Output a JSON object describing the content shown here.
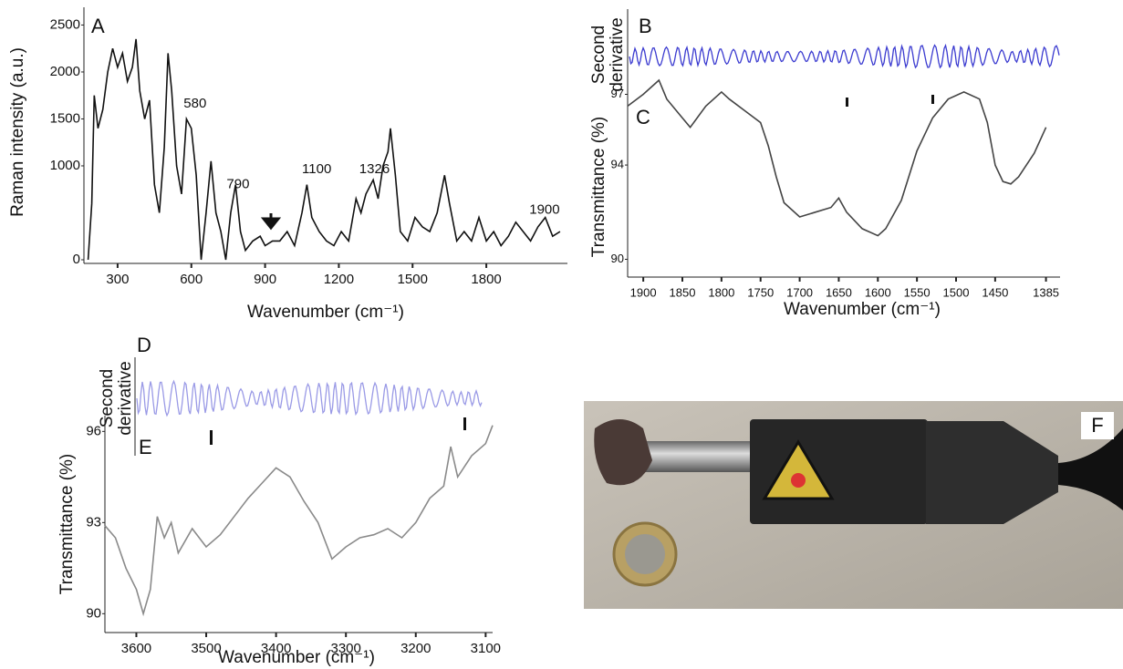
{
  "chart_data": [
    {
      "type": "line",
      "letter": "A",
      "ylabel": "Raman intensity (a.u.)",
      "xlabel": "Wavenumber (cm⁻¹)",
      "color": "#111111",
      "xlim": [
        163,
        2130
      ],
      "xticks": [
        300,
        600,
        900,
        1200,
        1500,
        1800
      ],
      "ylim": [
        0,
        2650
      ],
      "yticks": [
        0,
        1000,
        1500,
        2000,
        2500
      ],
      "x": [
        180,
        195,
        205,
        220,
        240,
        260,
        280,
        300,
        320,
        340,
        360,
        375,
        390,
        410,
        430,
        450,
        470,
        490,
        505,
        520,
        540,
        560,
        580,
        600,
        620,
        640,
        660,
        680,
        700,
        720,
        740,
        760,
        780,
        800,
        820,
        850,
        880,
        900,
        930,
        960,
        990,
        1020,
        1050,
        1070,
        1090,
        1120,
        1150,
        1180,
        1210,
        1240,
        1270,
        1290,
        1310,
        1340,
        1360,
        1380,
        1400,
        1410,
        1430,
        1450,
        1480,
        1510,
        1540,
        1570,
        1600,
        1630,
        1650,
        1680,
        1710,
        1740,
        1770,
        1800,
        1830,
        1860,
        1890,
        1920,
        1950,
        1980,
        2010,
        2040,
        2070,
        2100
      ],
      "values": [
        0,
        600,
        1750,
        1400,
        1600,
        2000,
        2250,
        2050,
        2200,
        1900,
        2050,
        2350,
        1800,
        1500,
        1700,
        800,
        500,
        1200,
        2200,
        1800,
        1000,
        700,
        1500,
        1400,
        900,
        0,
        500,
        1050,
        500,
        300,
        0,
        500,
        800,
        300,
        100,
        200,
        250,
        150,
        200,
        200,
        300,
        150,
        500,
        800,
        450,
        300,
        200,
        150,
        300,
        200,
        650,
        500,
        700,
        850,
        650,
        1000,
        1150,
        1400,
        900,
        300,
        200,
        450,
        350,
        300,
        500,
        900,
        600,
        200,
        300,
        200,
        450,
        200,
        300,
        150,
        250,
        400,
        300,
        200,
        350,
        450,
        250,
        300
      ],
      "annotations": [
        {
          "text": "580",
          "x": 615,
          "y": 1660
        },
        {
          "text": "790",
          "x": 790,
          "y": 800
        },
        {
          "text": "1100",
          "x": 1110,
          "y": 960
        },
        {
          "text": "1326",
          "x": 1345,
          "y": 960
        },
        {
          "text": "1900",
          "x": 2037,
          "y": 530
        }
      ]
    },
    {
      "type": "line",
      "letter": "C",
      "ylabel": "Transmittance (%)",
      "xlabel": "Wavenumber (cm⁻¹)",
      "color": "#444444",
      "xlim": [
        1920,
        1367
      ],
      "xticks": [
        1900,
        1850,
        1800,
        1750,
        1700,
        1650,
        1600,
        1550,
        1500,
        1450,
        1385
      ],
      "ylim": [
        89.4,
        97.6
      ],
      "yticks": [
        90,
        94,
        97
      ],
      "x": [
        1920,
        1900,
        1880,
        1870,
        1850,
        1840,
        1820,
        1800,
        1790,
        1770,
        1750,
        1740,
        1730,
        1720,
        1700,
        1680,
        1660,
        1650,
        1640,
        1620,
        1600,
        1590,
        1570,
        1550,
        1530,
        1510,
        1490,
        1470,
        1460,
        1450,
        1440,
        1430,
        1420,
        1400,
        1385
      ],
      "values": [
        96.5,
        97,
        97.6,
        96.8,
        96,
        95.6,
        96.5,
        97.1,
        96.8,
        96.3,
        95.8,
        94.8,
        93.5,
        92.4,
        91.8,
        92,
        92.2,
        92.6,
        92,
        91.3,
        91,
        91.3,
        92.5,
        94.6,
        96,
        96.8,
        97.1,
        96.8,
        95.8,
        94,
        93.3,
        93.2,
        93.5,
        94.5,
        95.6
      ]
    },
    {
      "type": "line",
      "letter": "E",
      "ylabel": "Transmittance (%)",
      "xlabel": "Wavenumber (cm⁻¹)",
      "color": "#8a8a8a",
      "xlim": [
        3645,
        3090
      ],
      "xticks": [
        3600,
        3500,
        3400,
        3300,
        3200,
        3100
      ],
      "ylim": [
        89.5,
        96.4
      ],
      "yticks": [
        90,
        93,
        96
      ],
      "x": [
        3645,
        3630,
        3615,
        3600,
        3590,
        3580,
        3570,
        3560,
        3550,
        3540,
        3520,
        3500,
        3480,
        3460,
        3440,
        3420,
        3400,
        3380,
        3360,
        3340,
        3320,
        3300,
        3280,
        3260,
        3240,
        3220,
        3200,
        3180,
        3160,
        3150,
        3140,
        3120,
        3100,
        3090
      ],
      "values": [
        92.9,
        92.5,
        91.5,
        90.8,
        90,
        90.8,
        93.2,
        92.5,
        93,
        92,
        92.8,
        92.2,
        92.6,
        93.2,
        93.8,
        94.3,
        94.8,
        94.5,
        93.7,
        93,
        91.8,
        92.2,
        92.5,
        92.6,
        92.8,
        92.5,
        93,
        93.8,
        94.2,
        95.5,
        94.5,
        95.2,
        95.6,
        96.2
      ]
    }
  ],
  "derivative_panels": [
    {
      "letter": "B",
      "ylabel_lines": [
        "Second",
        "derivative"
      ]
    },
    {
      "letter": "D",
      "ylabel_lines": [
        "Second",
        "derivative"
      ]
    }
  ],
  "photo": {
    "letter": "F"
  }
}
